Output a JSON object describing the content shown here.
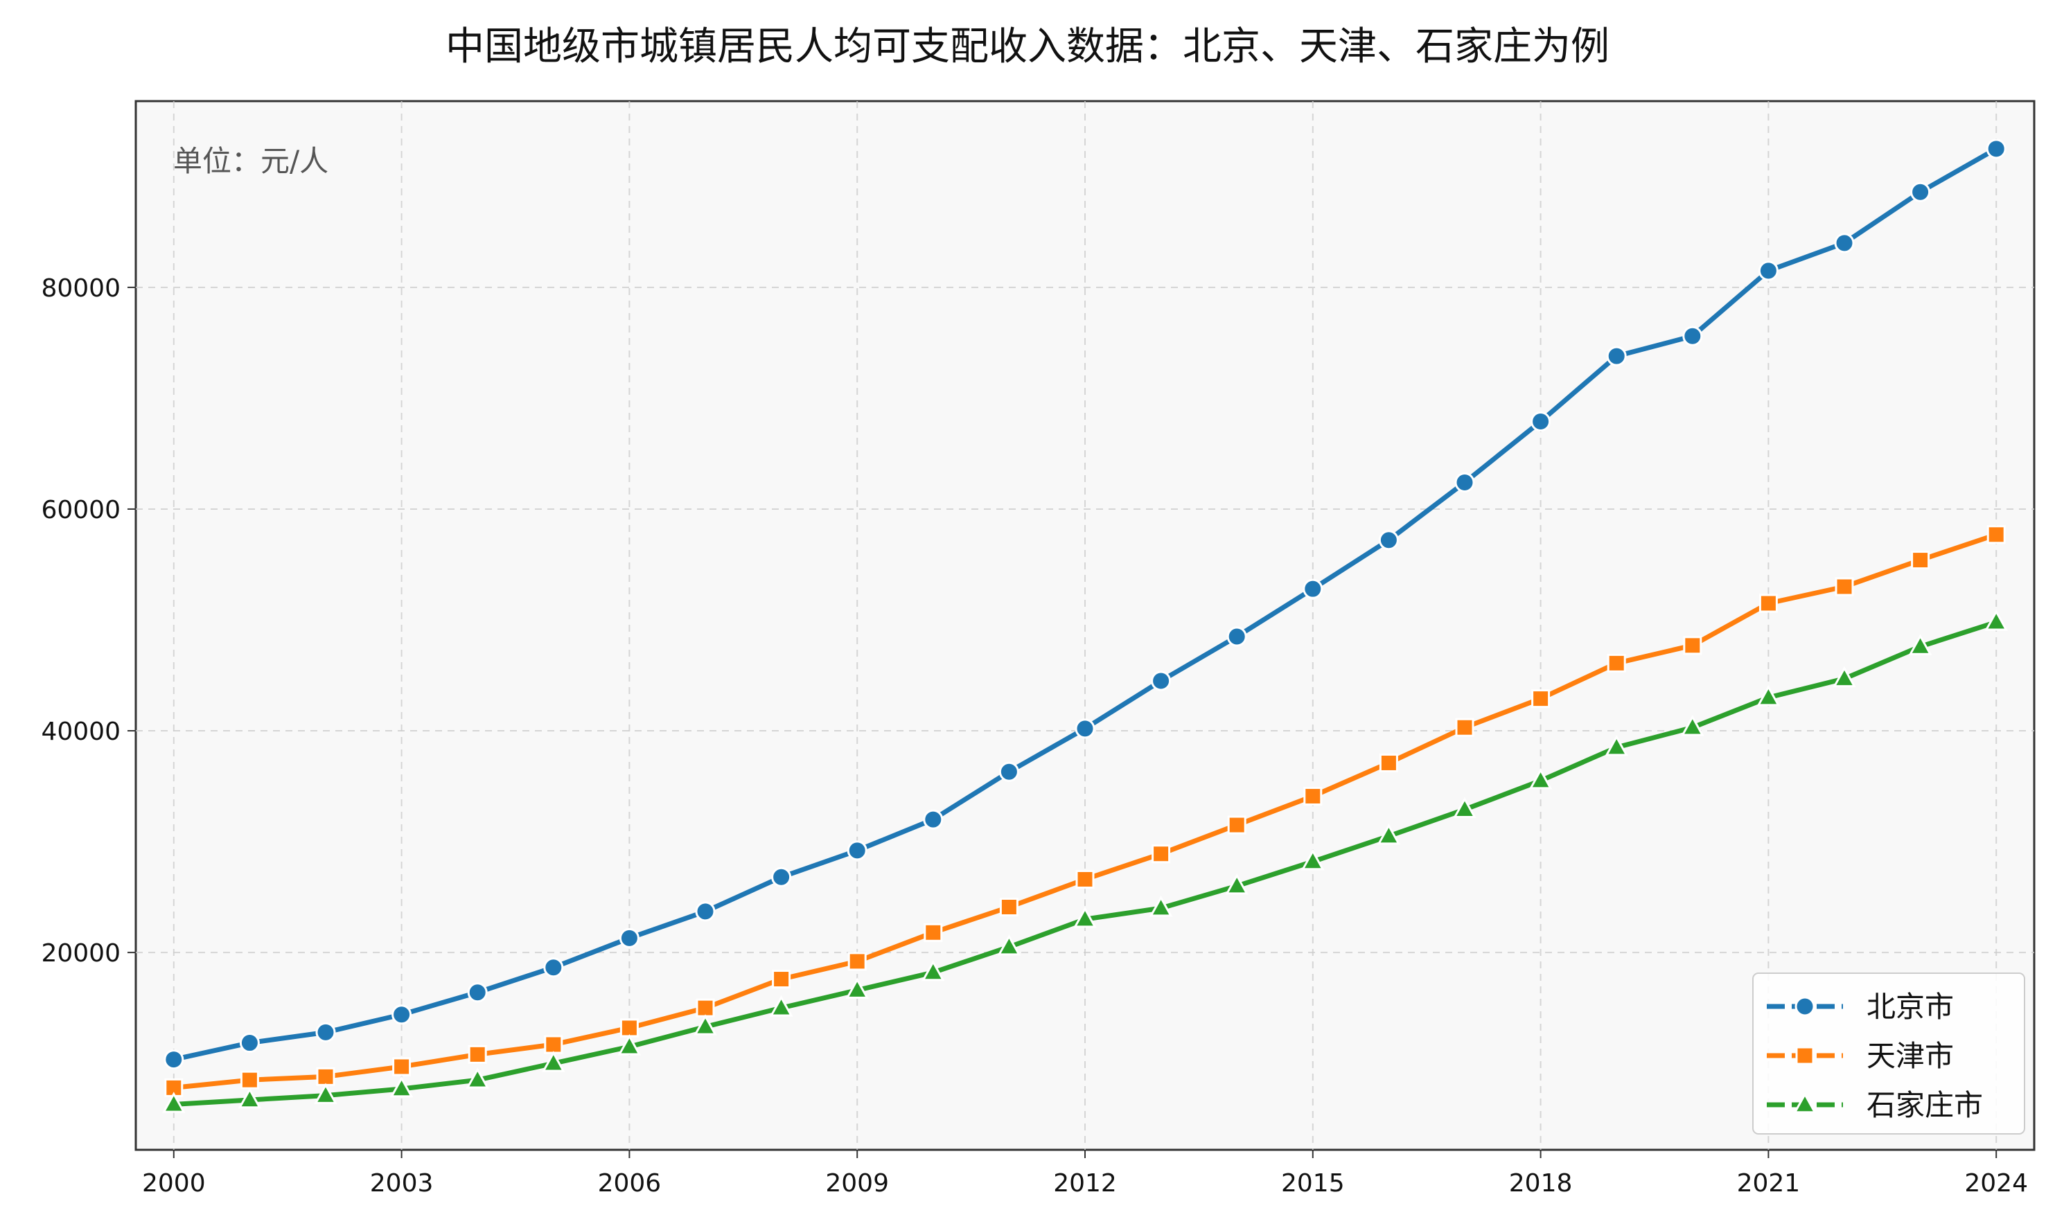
{
  "chart_data": {
    "type": "line",
    "title": "中国地级市城镇居民人均可支配收入数据：北京、天津、石家庄为例",
    "annotation": "单位：元/人",
    "xlabel": "",
    "ylabel": "",
    "x": [
      2000,
      2001,
      2002,
      2003,
      2004,
      2005,
      2006,
      2007,
      2008,
      2009,
      2010,
      2011,
      2012,
      2013,
      2014,
      2015,
      2016,
      2017,
      2018,
      2019,
      2020,
      2021,
      2022,
      2023,
      2024
    ],
    "xlim": [
      1999.5,
      2024.5
    ],
    "ylim": [
      2200,
      96800
    ],
    "x_ticks": [
      2000,
      2003,
      2006,
      2009,
      2012,
      2015,
      2018,
      2021,
      2024
    ],
    "y_ticks": [
      20000,
      40000,
      60000,
      80000
    ],
    "grid": true,
    "legend_position": "bottom-right",
    "series": [
      {
        "name": "北京市",
        "color": "#1f77b4",
        "marker": "circle",
        "values": [
          10350,
          11850,
          12800,
          14400,
          16400,
          18650,
          21300,
          23700,
          26800,
          29200,
          32000,
          36300,
          40200,
          44500,
          48500,
          52800,
          57200,
          62400,
          67900,
          73800,
          75600,
          81500,
          84000,
          88600,
          92500
        ]
      },
      {
        "name": "天津市",
        "color": "#ff7f0e",
        "marker": "square",
        "values": [
          7800,
          8500,
          8800,
          9700,
          10800,
          11700,
          13200,
          15000,
          17600,
          19200,
          21800,
          24100,
          26600,
          28900,
          31500,
          34100,
          37100,
          40300,
          42900,
          46100,
          47700,
          51500,
          53000,
          55400,
          57700
        ]
      },
      {
        "name": "石家庄市",
        "color": "#2ca02c",
        "marker": "triangle",
        "values": [
          6300,
          6700,
          7100,
          7700,
          8500,
          10000,
          11500,
          13300,
          15000,
          16600,
          18200,
          20500,
          23000,
          24000,
          26000,
          28200,
          30500,
          32900,
          35500,
          38500,
          40300,
          43000,
          44700,
          47600,
          49800
        ]
      }
    ]
  }
}
